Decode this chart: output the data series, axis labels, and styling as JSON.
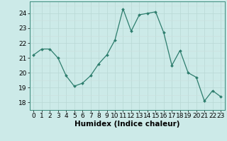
{
  "x": [
    0,
    1,
    2,
    3,
    4,
    5,
    6,
    7,
    8,
    9,
    10,
    11,
    12,
    13,
    14,
    15,
    16,
    17,
    18,
    19,
    20,
    21,
    22,
    23
  ],
  "y": [
    21.2,
    21.6,
    21.6,
    21.0,
    19.8,
    19.1,
    19.3,
    19.8,
    20.6,
    21.2,
    22.2,
    24.3,
    22.8,
    23.9,
    24.0,
    24.1,
    22.7,
    20.5,
    21.5,
    20.0,
    19.7,
    18.1,
    18.8,
    18.4
  ],
  "line_color": "#2d7d6d",
  "marker": "D",
  "marker_size": 2.0,
  "bg_color": "#cceae8",
  "grid_color": "#b8d8d5",
  "grid_color_minor": "#ccdfdd",
  "xlabel": "Humidex (Indice chaleur)",
  "xlabel_fontsize": 7.5,
  "tick_fontsize": 6.5,
  "ylim": [
    17.5,
    24.8
  ],
  "yticks": [
    18,
    19,
    20,
    21,
    22,
    23,
    24
  ],
  "xlim": [
    -0.5,
    23.5
  ],
  "xticks": [
    0,
    1,
    2,
    3,
    4,
    5,
    6,
    7,
    8,
    9,
    10,
    11,
    12,
    13,
    14,
    15,
    16,
    17,
    18,
    19,
    20,
    21,
    22,
    23
  ]
}
